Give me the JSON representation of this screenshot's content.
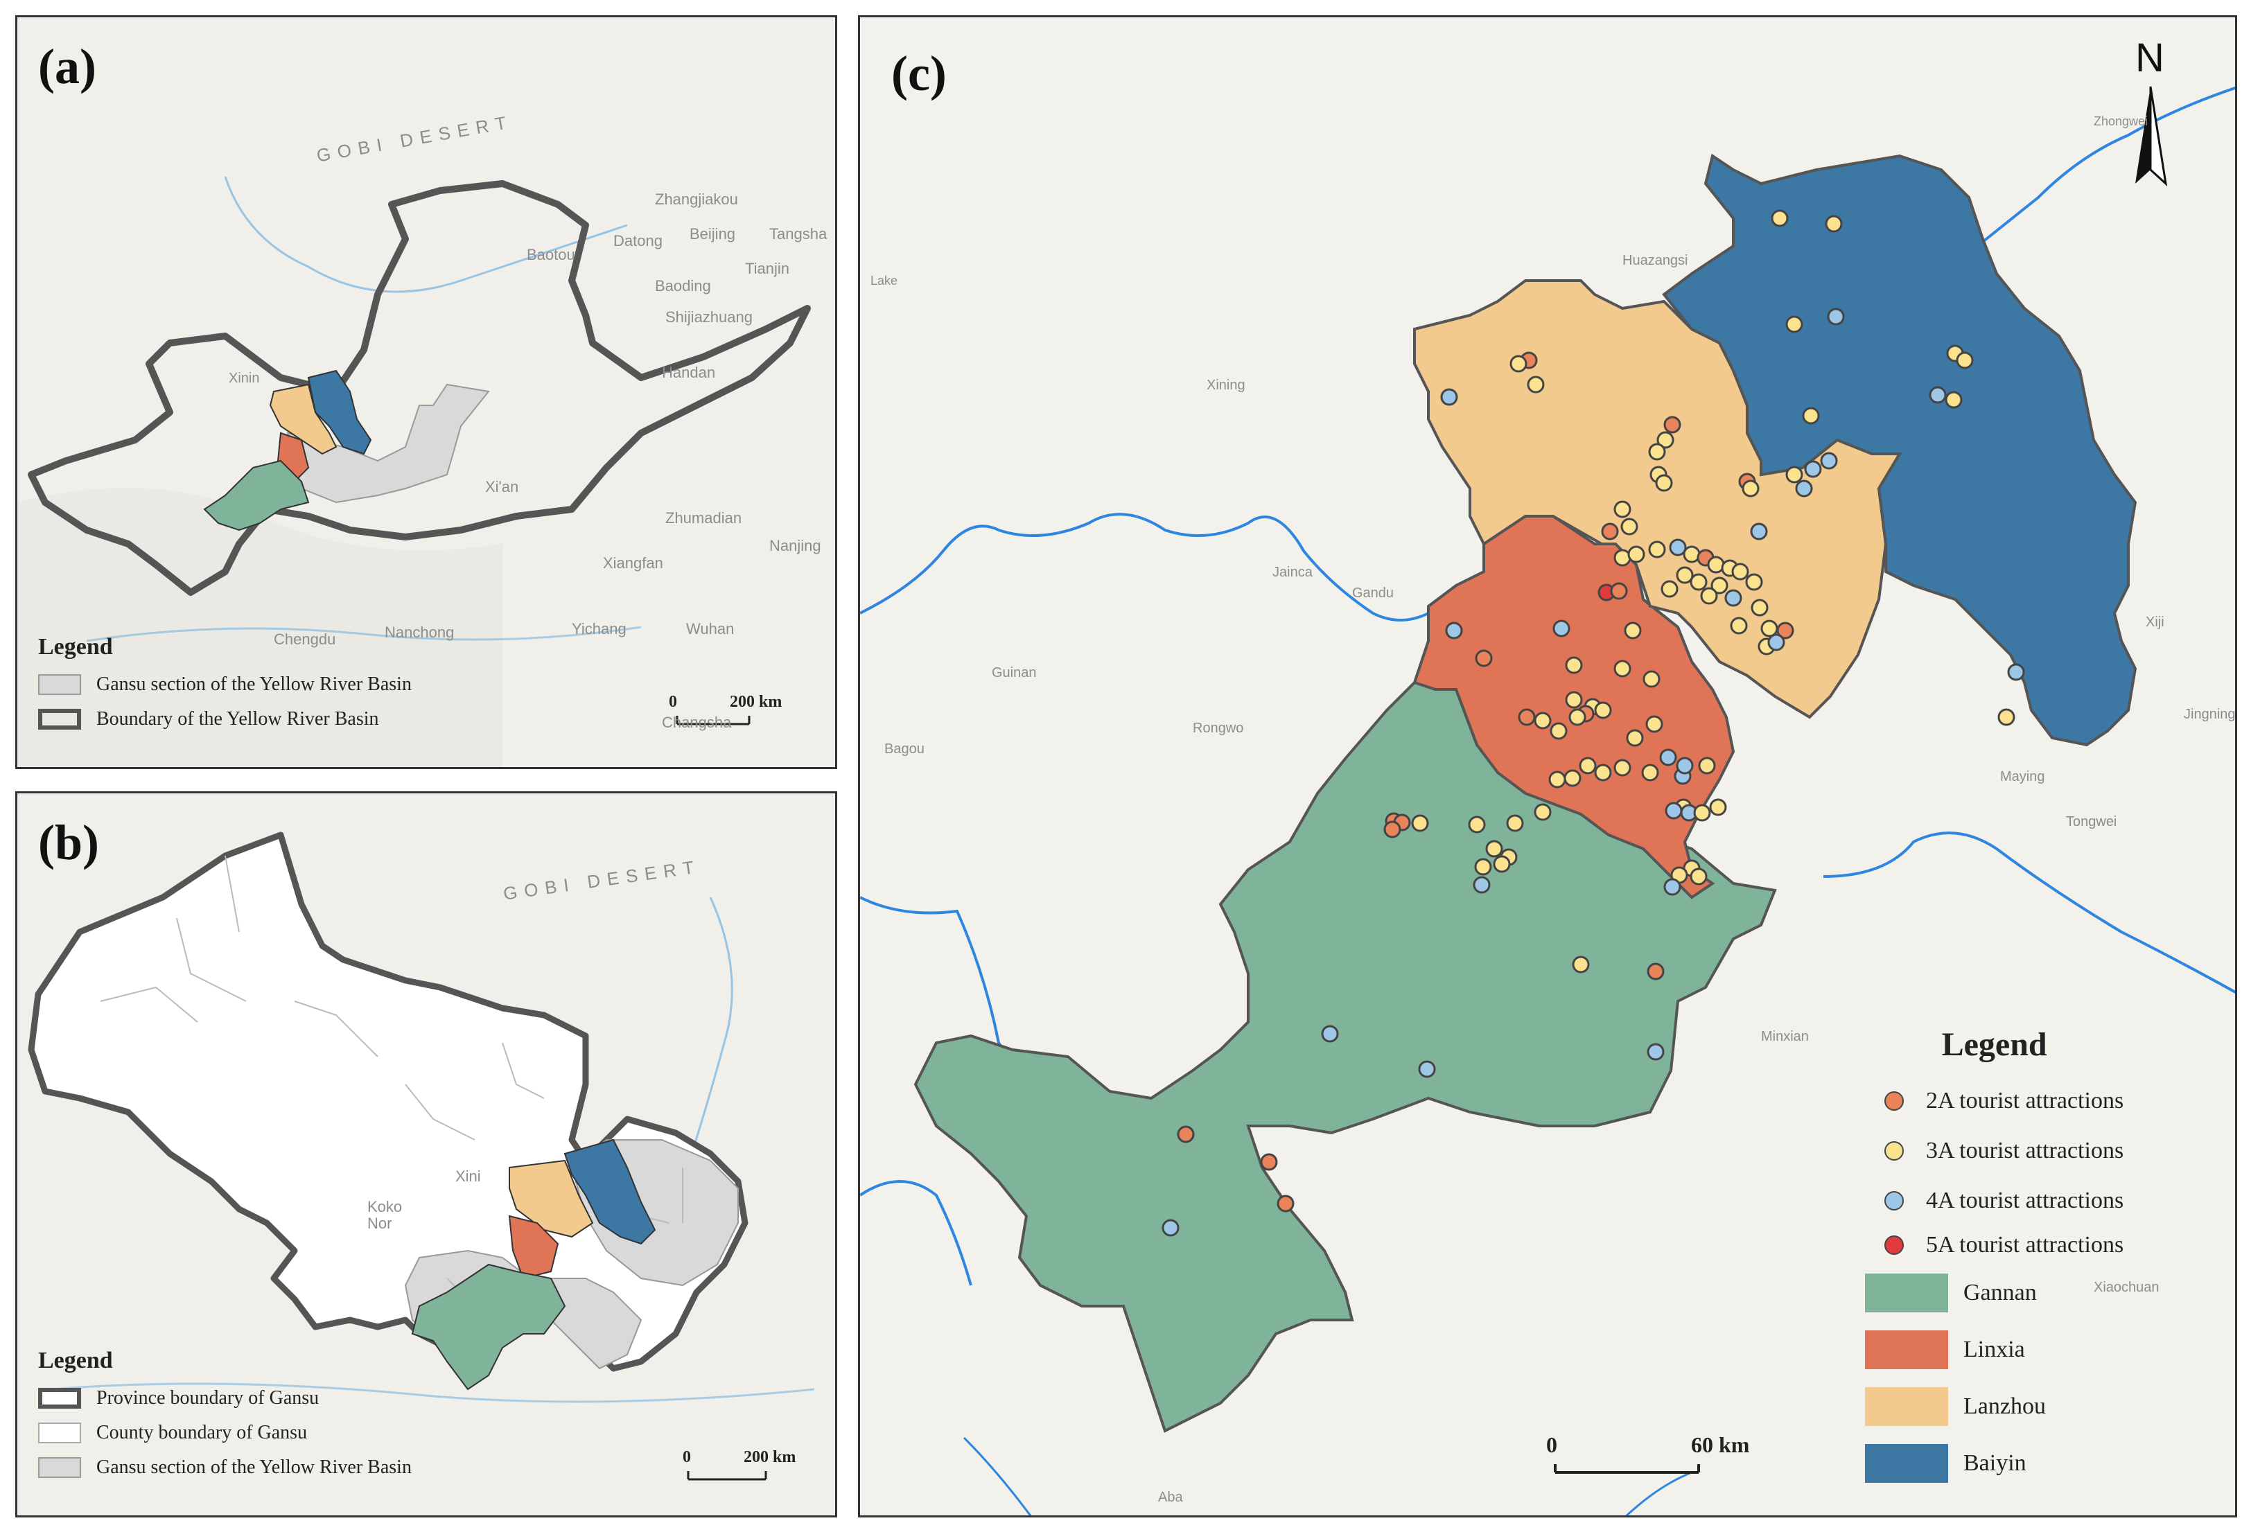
{
  "panel_a": {
    "label": "(a)",
    "legend_title": "Legend",
    "legend_items": [
      {
        "label": "Gansu section of the Yellow River Basin",
        "color": "#d9d9d9"
      },
      {
        "label": "Boundary of the Yellow River Basin",
        "color": "#555555"
      }
    ],
    "scale": {
      "zero": "0",
      "end": "200 km"
    },
    "basemap_labels": [
      "GOBI DESERT",
      "Baotou",
      "Datong",
      "Beijing",
      "Tangsha",
      "Tianjin",
      "Zhangjiakou",
      "Baoding",
      "Shijiazhuang",
      "Handan",
      "Xi'an",
      "Zhumadian",
      "Nanjing",
      "Xiangfan",
      "Chengdu",
      "Nanchong",
      "Yichang",
      "Wuhan",
      "Changsha",
      "Xinin"
    ]
  },
  "panel_b": {
    "label": "(b)",
    "legend_title": "Legend",
    "legend_items": [
      {
        "label": "Province boundary of Gansu",
        "color": "#555555"
      },
      {
        "label": "County boundary of Gansu",
        "color": "#ffffff"
      },
      {
        "label": "Gansu section of the Yellow River Basin",
        "color": "#d9d9d9"
      }
    ],
    "scale": {
      "zero": "0",
      "end": "200 km"
    },
    "basemap_labels": [
      "GOBI DESERT",
      "Koko Nor",
      "Xini"
    ]
  },
  "panel_c": {
    "label": "(c)",
    "north": "N",
    "legend_title": "Legend",
    "point_legend": [
      {
        "label": "2A  tourist attractions",
        "color": "#e9845a"
      },
      {
        "label": "3A  tourist attractions",
        "color": "#fbe28f"
      },
      {
        "label": "4A  tourist attractions",
        "color": "#9ec6e7"
      },
      {
        "label": "5A  tourist attractions",
        "color": "#e23a3a"
      }
    ],
    "area_legend": [
      {
        "label": "Gannan",
        "color": "#80b49a"
      },
      {
        "label": "Linxia",
        "color": "#e07457"
      },
      {
        "label": "Lanzhou",
        "color": "#f2ca8e"
      },
      {
        "label": "Baiyin",
        "color": "#3d77a3"
      }
    ],
    "scale": {
      "zero": "0",
      "end": "60 km"
    },
    "basemap_labels": [
      "Zhongwei",
      "Huazangsi",
      "Xining",
      "Jainca",
      "Gandu",
      "Guinan",
      "Rongwo",
      "Bagou",
      "Maying",
      "Tongwei",
      "Minxian",
      "Xiji",
      "Jingning",
      "Xiaochuan",
      "Aba",
      "Lake"
    ]
  }
}
